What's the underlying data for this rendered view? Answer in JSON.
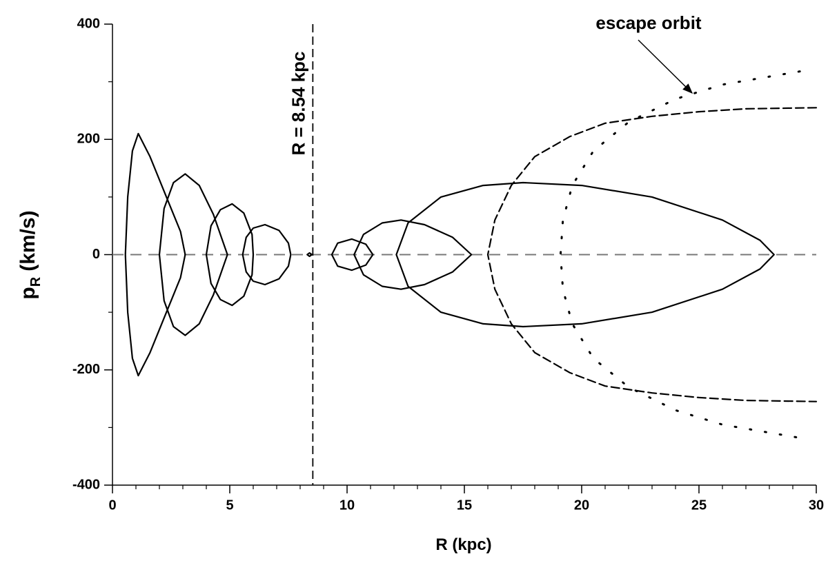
{
  "chart_data": {
    "type": "line",
    "xlabel": "R (kpc)",
    "ylabel": "p",
    "ylabel_sub": "R",
    "ylabel_unit": "(km/s)",
    "xlim": [
      0,
      30
    ],
    "ylim": [
      -400,
      400
    ],
    "xticks": [
      0,
      5,
      10,
      15,
      20,
      25,
      30
    ],
    "yticks": [
      -400,
      -200,
      0,
      200,
      400
    ],
    "xminorticks": [
      1,
      2,
      3,
      4,
      6,
      7,
      8,
      9,
      11,
      12,
      13,
      14,
      16,
      17,
      18,
      19,
      21,
      22,
      23,
      24,
      26,
      27,
      28,
      29
    ],
    "yminorticks": [
      -300,
      -100,
      100,
      300
    ],
    "zero_line": 0,
    "vline": 8.54,
    "vline_label": "R = 8.54 kpc",
    "annotation": "escape orbit",
    "series": [
      {
        "color": "#000",
        "style": "solid",
        "x": [
          0.55,
          0.65,
          0.85,
          1.1,
          1.6,
          2.3,
          2.9,
          3.1,
          2.9,
          2.3,
          1.6,
          1.1,
          0.85,
          0.65,
          0.55
        ],
        "values": [
          0,
          100,
          180,
          210,
          170,
          100,
          40,
          0,
          -40,
          -100,
          -170,
          -210,
          -180,
          -100,
          0
        ]
      },
      {
        "color": "#000",
        "style": "solid",
        "x": [
          2.0,
          2.2,
          2.6,
          3.1,
          3.7,
          4.3,
          4.9,
          4.3,
          3.7,
          3.1,
          2.6,
          2.2,
          2.0
        ],
        "values": [
          0,
          80,
          125,
          140,
          120,
          70,
          0,
          -70,
          -120,
          -140,
          -125,
          -80,
          0
        ]
      },
      {
        "color": "#000",
        "style": "solid",
        "x": [
          4.0,
          4.2,
          4.6,
          5.1,
          5.6,
          5.95,
          6.0,
          5.95,
          5.6,
          5.1,
          4.6,
          4.2,
          4.0
        ],
        "values": [
          0,
          50,
          78,
          88,
          72,
          35,
          0,
          -35,
          -72,
          -88,
          -78,
          -50,
          0
        ]
      },
      {
        "color": "#000",
        "style": "solid",
        "x": [
          5.55,
          5.7,
          6.0,
          6.5,
          7.1,
          7.5,
          7.6,
          7.5,
          7.1,
          6.5,
          6.0,
          5.7,
          5.55
        ],
        "values": [
          0,
          30,
          46,
          52,
          42,
          20,
          0,
          -20,
          -42,
          -52,
          -46,
          -30,
          0
        ]
      },
      {
        "color": "#000",
        "style": "solid",
        "x": [
          8.3,
          8.4,
          8.5,
          8.4,
          8.3
        ],
        "values": [
          0,
          3,
          0,
          -3,
          0
        ]
      },
      {
        "color": "#000",
        "style": "solid",
        "x": [
          9.35,
          9.6,
          10.2,
          10.8,
          11.1,
          10.8,
          10.2,
          9.6,
          9.35
        ],
        "values": [
          0,
          20,
          27,
          18,
          0,
          -18,
          -27,
          -20,
          0
        ]
      },
      {
        "color": "#000",
        "style": "solid",
        "x": [
          10.3,
          10.7,
          11.5,
          12.3,
          13.3,
          14.5,
          15.3,
          14.5,
          13.3,
          12.3,
          11.5,
          10.7,
          10.3
        ],
        "values": [
          0,
          35,
          55,
          60,
          52,
          30,
          0,
          -30,
          -52,
          -60,
          -55,
          -35,
          0
        ]
      },
      {
        "color": "#000",
        "style": "solid",
        "x": [
          12.1,
          12.6,
          14.0,
          15.8,
          17.5,
          20.0,
          23.0,
          26.0,
          27.6,
          28.2,
          27.6,
          26.0,
          23.0,
          20.0,
          17.5,
          15.8,
          14.0,
          12.6,
          12.1
        ],
        "values": [
          0,
          55,
          100,
          120,
          125,
          120,
          100,
          60,
          25,
          0,
          -25,
          -60,
          -100,
          -120,
          -125,
          -120,
          -100,
          -55,
          0
        ]
      },
      {
        "color": "#000",
        "style": "dashed",
        "x": [
          30,
          27,
          25,
          23,
          21,
          19.5,
          18,
          17,
          16.3,
          16,
          16.3,
          17,
          18,
          19.5,
          21,
          23,
          25,
          27,
          30
        ],
        "values": [
          255,
          253,
          248,
          240,
          228,
          205,
          170,
          120,
          60,
          0,
          -60,
          -120,
          -170,
          -205,
          -228,
          -240,
          -248,
          -253,
          -255
        ]
      },
      {
        "color": "#000",
        "style": "dotted",
        "x": [
          29.3,
          26,
          24,
          22,
          20.5,
          19.6,
          19.2,
          19.1,
          19.2,
          19.6,
          20.5,
          22,
          24,
          26,
          29.3
        ],
        "values": [
          318,
          295,
          270,
          230,
          180,
          120,
          60,
          0,
          -60,
          -120,
          -180,
          -230,
          -270,
          -295,
          -318
        ]
      }
    ]
  }
}
